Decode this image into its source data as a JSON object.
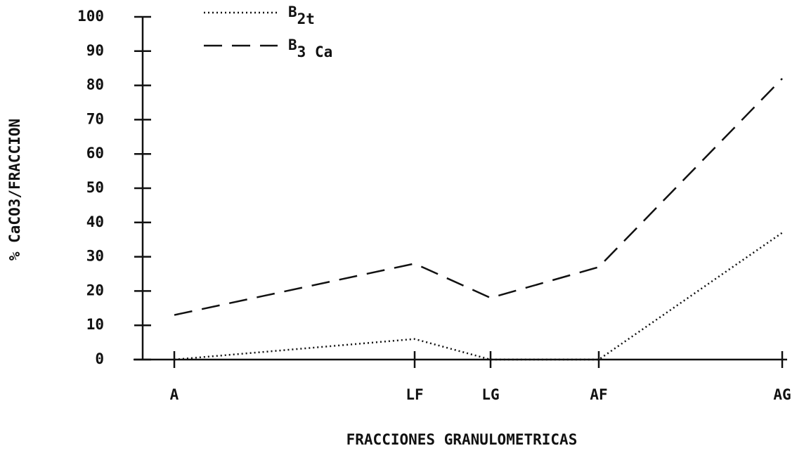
{
  "chart_data": {
    "type": "line",
    "xlabel": "FRACCIONES GRANULOMETRICAS",
    "ylabel": "% CaCO3/FRACCION",
    "categories": [
      "A",
      "LF",
      "LG",
      "AF",
      "AG"
    ],
    "series": [
      {
        "name": "B2t",
        "color": "#111111",
        "style": "dotted",
        "values": [
          0,
          6,
          0,
          0,
          37
        ]
      },
      {
        "name": "B3 Ca",
        "color": "#111111",
        "style": "dashed",
        "values": [
          13,
          28,
          18,
          27,
          82
        ]
      }
    ],
    "ylim": [
      0,
      100
    ],
    "yticks": [
      0,
      10,
      20,
      30,
      40,
      50,
      60,
      70,
      80,
      90,
      100
    ],
    "legend": "upper left"
  }
}
